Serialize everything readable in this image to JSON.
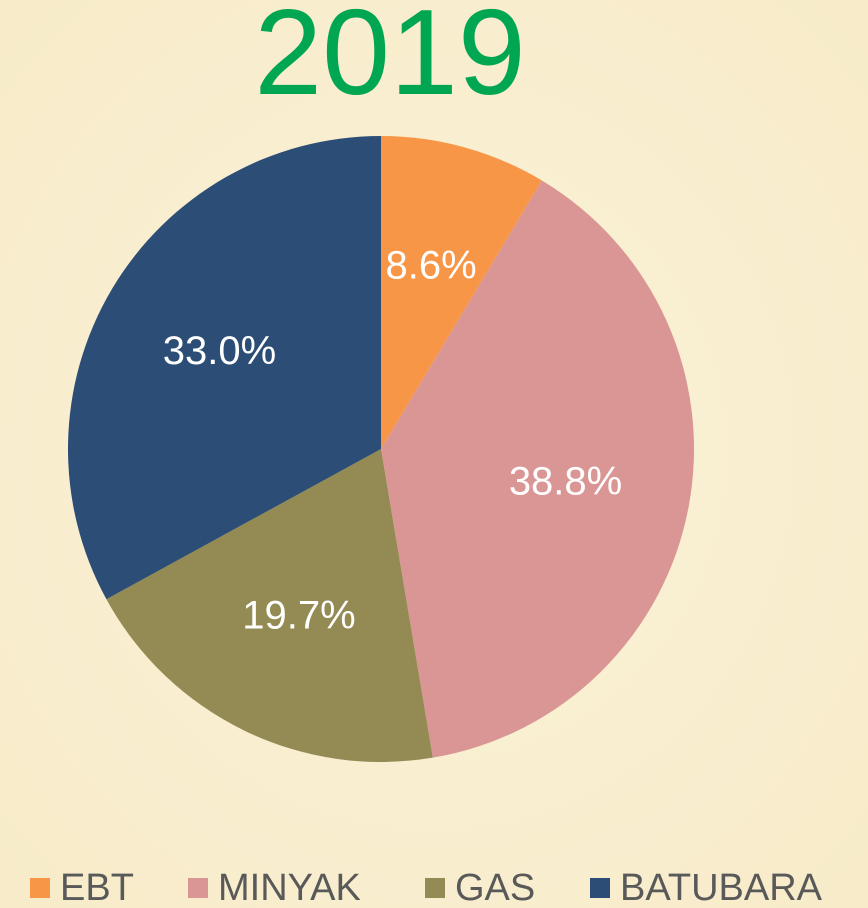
{
  "chart_data": {
    "type": "pie",
    "title": "2019",
    "categories": [
      "EBT",
      "MINYAK",
      "GAS",
      "BATUBARA"
    ],
    "values": [
      8.6,
      38.8,
      19.7,
      33.0
    ],
    "value_labels": [
      "8.6%",
      "38.8%",
      "19.7%",
      "33.0%"
    ],
    "colors": [
      "#f79646",
      "#d99694",
      "#948a54",
      "#2c4d75"
    ],
    "legend": "bottom"
  }
}
